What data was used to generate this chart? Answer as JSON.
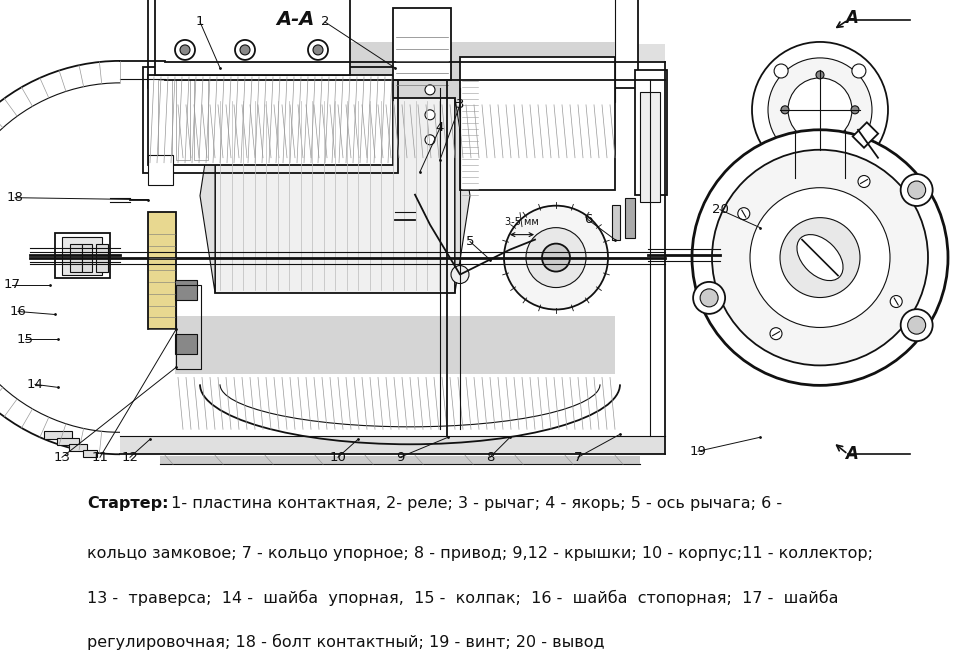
{
  "background_color": "#ffffff",
  "figsize": [
    9.65,
    6.51
  ],
  "dpi": 100,
  "caption_bold": "Стартер:",
  "caption_line1": " 1- пластина контактная, 2- реле; 3 - рычаг; 4 - якорь; 5 - ось рычага; 6 -",
  "caption_line2": "кольцо замковое; 7 - кольцо упорное; 8 - привод; 9,12 - крышки; 10 - корпус;11 - коллектор;",
  "caption_line3": "13 -  траверса;  14 -  шайба  упорная,  15 -  колпак;  16 -  шайба  стопорная;  17 -  шайба",
  "caption_line4": "регулировочная; 18 - болт контактный; 19 - винт; 20 - вывод",
  "dark": "#111111",
  "gray": "#777777",
  "hatch_gray": "#999999",
  "caption_fontsize": 11.5,
  "label_fontsize": 9.5,
  "title_fontsize": 14
}
